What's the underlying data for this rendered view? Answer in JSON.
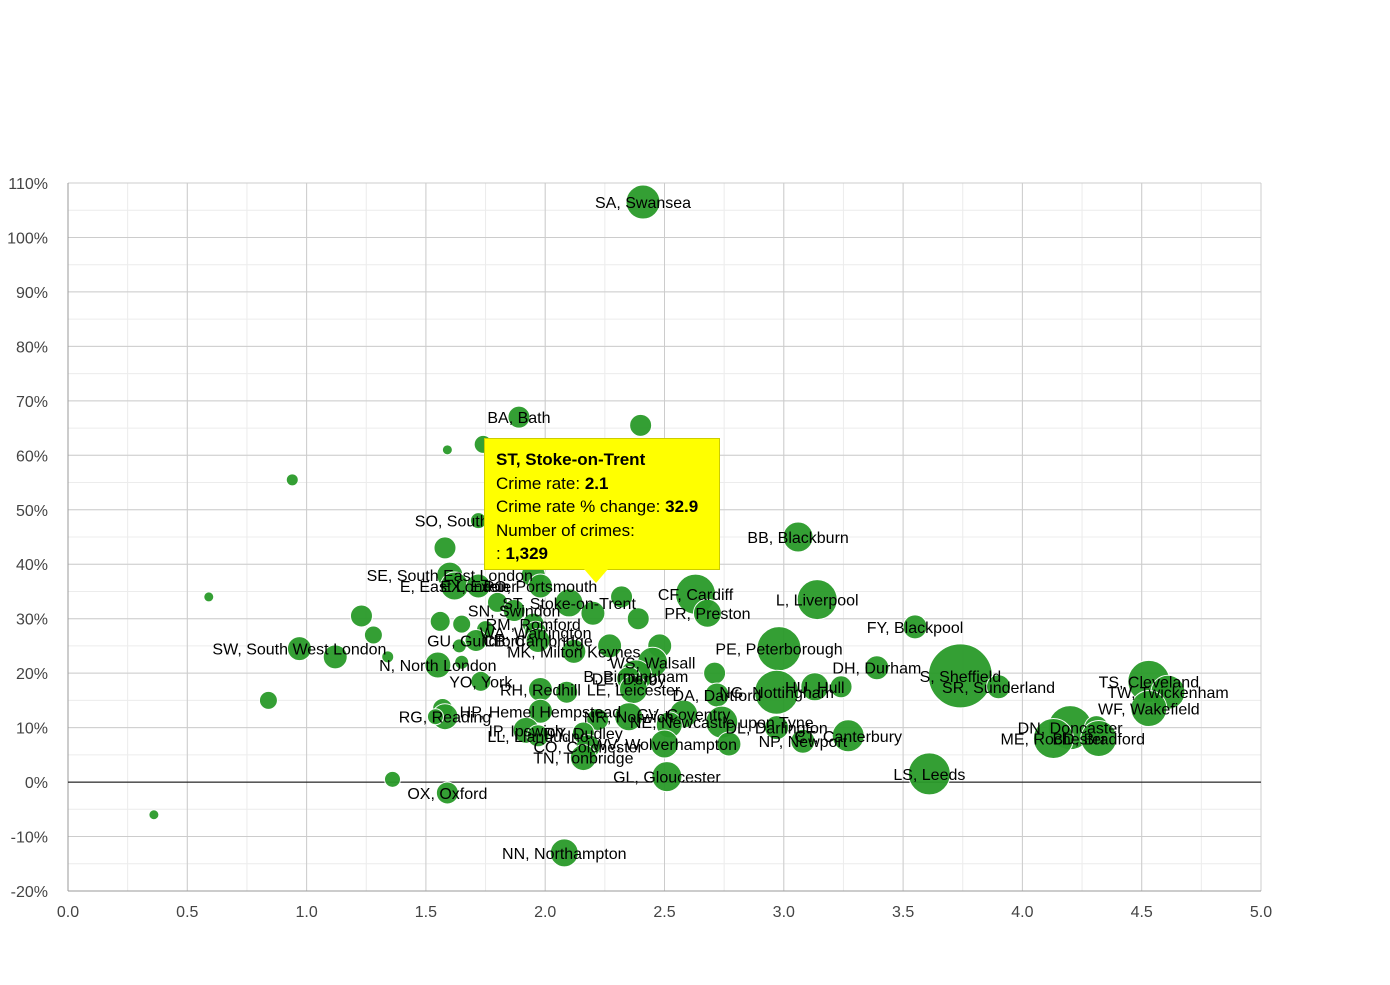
{
  "colors": {
    "bubble": "#2a9a2a",
    "bubble_stroke": "#ffffff",
    "grid_major": "#cccccc",
    "grid_minor": "#ececec",
    "zero_line": "#000000",
    "tooltip_bg": "#ffff00"
  },
  "chart_data": {
    "type": "scatter",
    "subtype": "bubble",
    "title": "",
    "xlabel": "",
    "ylabel": "",
    "xlim": [
      0,
      5
    ],
    "ylim": [
      -20,
      110
    ],
    "x_ticks": [
      "0.0",
      "0.5",
      "1.0",
      "1.5",
      "2.0",
      "2.5",
      "3.0",
      "3.5",
      "4.0",
      "4.5",
      "5.0"
    ],
    "y_ticks": [
      "-20%",
      "-10%",
      "0%",
      "10%",
      "20%",
      "30%",
      "40%",
      "50%",
      "60%",
      "70%",
      "80%",
      "90%",
      "100%",
      "110%"
    ],
    "grid": true,
    "legend": "none",
    "points": [
      {
        "label": "SA, Swansea",
        "x": 2.41,
        "y": 106.5,
        "r": 17
      },
      {
        "label": "BA, Bath",
        "x": 1.89,
        "y": 67,
        "r": 11
      },
      {
        "label": "",
        "x": 2.4,
        "y": 65.5,
        "r": 11
      },
      {
        "label": "",
        "x": 1.59,
        "y": 61,
        "r": 5
      },
      {
        "label": "",
        "x": 1.74,
        "y": 62,
        "r": 9
      },
      {
        "label": "",
        "x": 0.94,
        "y": 55.5,
        "r": 6
      },
      {
        "label": "SO, Southampton",
        "x": 1.72,
        "y": 48,
        "r": 8
      },
      {
        "label": "BB, Blackburn",
        "x": 3.06,
        "y": 45,
        "r": 15
      },
      {
        "label": "",
        "x": 1.58,
        "y": 43,
        "r": 11
      },
      {
        "label": "SE, South East London",
        "x": 1.6,
        "y": 38,
        "r": 13
      },
      {
        "label": "",
        "x": 1.95,
        "y": 38,
        "r": 12
      },
      {
        "label": "E, East London",
        "x": 1.62,
        "y": 36,
        "r": 14
      },
      {
        "label": "EX, Exeter",
        "x": 1.72,
        "y": 36,
        "r": 12
      },
      {
        "label": "PO, Portsmouth",
        "x": 1.98,
        "y": 36,
        "r": 12
      },
      {
        "label": "",
        "x": 0.59,
        "y": 34,
        "r": 5
      },
      {
        "label": "",
        "x": 2.32,
        "y": 34,
        "r": 11
      },
      {
        "label": "CF, Cardiff",
        "x": 2.63,
        "y": 34.5,
        "r": 20
      },
      {
        "label": "L, Liverpool",
        "x": 3.14,
        "y": 33.5,
        "r": 20
      },
      {
        "label": "ST, Stoke-on-Trent",
        "x": 2.1,
        "y": 32.9,
        "r": 14
      },
      {
        "label": "",
        "x": 1.8,
        "y": 33,
        "r": 10
      },
      {
        "label": "SN, Swindon",
        "x": 1.87,
        "y": 31.5,
        "r": 11
      },
      {
        "label": "",
        "x": 2.2,
        "y": 31,
        "r": 12
      },
      {
        "label": "PR, Preston",
        "x": 2.68,
        "y": 31,
        "r": 14
      },
      {
        "label": "",
        "x": 1.23,
        "y": 30.5,
        "r": 11
      },
      {
        "label": "",
        "x": 2.39,
        "y": 30,
        "r": 11
      },
      {
        "label": "RM, Romford",
        "x": 1.95,
        "y": 29,
        "r": 11
      },
      {
        "label": "",
        "x": 1.56,
        "y": 29.5,
        "r": 10
      },
      {
        "label": "",
        "x": 1.65,
        "y": 29,
        "r": 9
      },
      {
        "label": "FY, Blackpool",
        "x": 3.55,
        "y": 28.5,
        "r": 12
      },
      {
        "label": "WA, Warrington",
        "x": 1.96,
        "y": 27.5,
        "r": 11
      },
      {
        "label": "",
        "x": 1.75,
        "y": 28,
        "r": 9
      },
      {
        "label": "",
        "x": 1.28,
        "y": 27,
        "r": 9
      },
      {
        "label": "GU, Guildford",
        "x": 1.71,
        "y": 26,
        "r": 11
      },
      {
        "label": "CB, Cambridge",
        "x": 1.97,
        "y": 26,
        "r": 12
      },
      {
        "label": "",
        "x": 1.64,
        "y": 25,
        "r": 7
      },
      {
        "label": "MK, Milton Keynes",
        "x": 2.12,
        "y": 24,
        "r": 12
      },
      {
        "label": "",
        "x": 2.27,
        "y": 25,
        "r": 12
      },
      {
        "label": "",
        "x": 2.48,
        "y": 25,
        "r": 12
      },
      {
        "label": "PE, Peterborough",
        "x": 2.98,
        "y": 24.5,
        "r": 22
      },
      {
        "label": "SW, South West London",
        "x": 0.97,
        "y": 24.5,
        "r": 12
      },
      {
        "label": "",
        "x": 1.12,
        "y": 23,
        "r": 12
      },
      {
        "label": "WS, Walsall",
        "x": 2.45,
        "y": 22,
        "r": 15
      },
      {
        "label": "",
        "x": 1.34,
        "y": 23,
        "r": 6
      },
      {
        "label": "N, North London",
        "x": 1.55,
        "y": 21.5,
        "r": 13
      },
      {
        "label": "",
        "x": 1.65,
        "y": 22,
        "r": 7
      },
      {
        "label": "DH, Durham",
        "x": 3.39,
        "y": 21,
        "r": 12
      },
      {
        "label": "S, Sheffield",
        "x": 3.74,
        "y": 19.5,
        "r": 32
      },
      {
        "label": "B, Birmingham",
        "x": 2.38,
        "y": 19.5,
        "r": 16
      },
      {
        "label": "DE, Derby",
        "x": 2.35,
        "y": 19,
        "r": 12
      },
      {
        "label": "",
        "x": 2.71,
        "y": 20,
        "r": 11
      },
      {
        "label": "YO, York",
        "x": 1.73,
        "y": 18.5,
        "r": 10
      },
      {
        "label": "TS, Cleveland",
        "x": 4.53,
        "y": 18.5,
        "r": 21
      },
      {
        "label": "TW, Twickenham",
        "x": 4.61,
        "y": 16.5,
        "r": 17
      },
      {
        "label": "SR, Sunderland",
        "x": 3.9,
        "y": 17.5,
        "r": 12
      },
      {
        "label": "HU, Hull",
        "x": 3.13,
        "y": 17.5,
        "r": 14
      },
      {
        "label": "",
        "x": 3.24,
        "y": 17.5,
        "r": 11
      },
      {
        "label": "NG, Nottingham",
        "x": 2.97,
        "y": 16.5,
        "r": 22
      },
      {
        "label": "LE, Leicester",
        "x": 2.37,
        "y": 17,
        "r": 14
      },
      {
        "label": "RH, Redhill",
        "x": 1.98,
        "y": 17,
        "r": 12
      },
      {
        "label": "",
        "x": 2.09,
        "y": 16.5,
        "r": 11
      },
      {
        "label": "DA, Dartford",
        "x": 2.72,
        "y": 16,
        "r": 12
      },
      {
        "label": "WF, Wakefield",
        "x": 4.53,
        "y": 13.5,
        "r": 18
      },
      {
        "label": "",
        "x": 1.57,
        "y": 13.5,
        "r": 10
      },
      {
        "label": "HP, Hemel Hempstead",
        "x": 1.98,
        "y": 13,
        "r": 12
      },
      {
        "label": "CV, Coventry",
        "x": 2.58,
        "y": 12.5,
        "r": 14
      },
      {
        "label": "RG, Reading",
        "x": 1.58,
        "y": 12,
        "r": 13
      },
      {
        "label": "",
        "x": 1.54,
        "y": 12,
        "r": 8
      },
      {
        "label": "NR, Norwich",
        "x": 2.35,
        "y": 12,
        "r": 14
      },
      {
        "label": "",
        "x": 2.22,
        "y": 11.5,
        "r": 11
      },
      {
        "label": "NE, Newcastle upon Tyne",
        "x": 2.74,
        "y": 11,
        "r": 16
      },
      {
        "label": "DN, Doncaster",
        "x": 4.2,
        "y": 10,
        "r": 22
      },
      {
        "label": "",
        "x": 4.31,
        "y": 10,
        "r": 12
      },
      {
        "label": "DL, Darlington",
        "x": 2.97,
        "y": 10,
        "r": 12
      },
      {
        "label": "IP, Ipswich",
        "x": 1.92,
        "y": 9.5,
        "r": 13
      },
      {
        "label": "DY, Dudley",
        "x": 2.16,
        "y": 9,
        "r": 11
      },
      {
        "label": "",
        "x": 2.52,
        "y": 10.5,
        "r": 13
      },
      {
        "label": "LL, Llandudno",
        "x": 1.97,
        "y": 8.5,
        "r": 11
      },
      {
        "label": "CT, Canterbury",
        "x": 3.27,
        "y": 8.5,
        "r": 16
      },
      {
        "label": "ME, Rochester",
        "x": 4.13,
        "y": 8,
        "r": 20
      },
      {
        "label": "BD, Bradford",
        "x": 4.32,
        "y": 8,
        "r": 18
      },
      {
        "label": "NP, Newport",
        "x": 3.08,
        "y": 7.5,
        "r": 12
      },
      {
        "label": "WV, Wolverhampton",
        "x": 2.5,
        "y": 7,
        "r": 14
      },
      {
        "label": "",
        "x": 2.77,
        "y": 7,
        "r": 12
      },
      {
        "label": "CO, Colchester",
        "x": 2.18,
        "y": 6.5,
        "r": 12
      },
      {
        "label": "TN, Tonbridge",
        "x": 2.16,
        "y": 4.5,
        "r": 13
      },
      {
        "label": "LS, Leeds",
        "x": 3.61,
        "y": 1.5,
        "r": 21
      },
      {
        "label": "GL, Gloucester",
        "x": 2.51,
        "y": 1,
        "r": 15
      },
      {
        "label": "",
        "x": 1.36,
        "y": 0.5,
        "r": 8
      },
      {
        "label": "OX, Oxford",
        "x": 1.59,
        "y": -2,
        "r": 11
      },
      {
        "label": "",
        "x": 0.84,
        "y": 15,
        "r": 9
      },
      {
        "label": "",
        "x": 0.36,
        "y": -6,
        "r": 5
      },
      {
        "label": "NN, Northampton",
        "x": 2.08,
        "y": -13,
        "r": 14
      }
    ]
  },
  "tooltip": {
    "title": "ST, Stoke-on-Trent",
    "rate_label": "Crime rate:",
    "rate_value": "2.1",
    "change_label": "Crime rate % change:",
    "change_value": "32.9",
    "crimes_label": "Number of crimes:",
    "crimes_prefix": ":",
    "crimes_value": "1,329"
  }
}
